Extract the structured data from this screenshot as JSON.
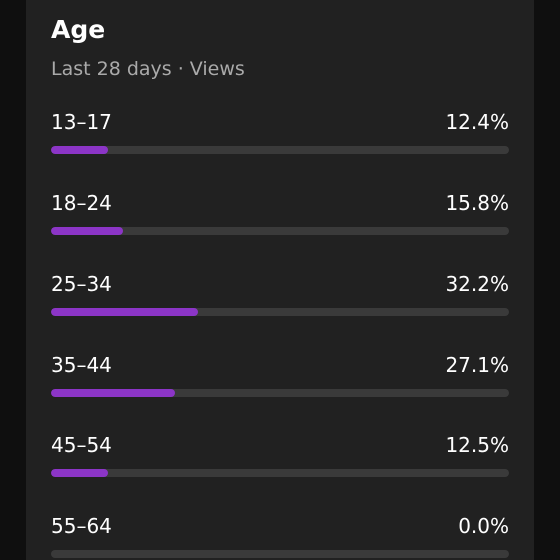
{
  "header": {
    "title": "Age",
    "subtitle": "Last 28 days · Views"
  },
  "accent_color": "#8c35c7",
  "track_color": "#3a3a3a",
  "rows": [
    {
      "label": "13–17",
      "value": "12.4%",
      "percent": 12.4
    },
    {
      "label": "18–24",
      "value": "15.8%",
      "percent": 15.8
    },
    {
      "label": "25–34",
      "value": "32.2%",
      "percent": 32.2
    },
    {
      "label": "35–44",
      "value": "27.1%",
      "percent": 27.1
    },
    {
      "label": "45–54",
      "value": "12.5%",
      "percent": 12.5
    },
    {
      "label": "55–64",
      "value": "0.0%",
      "percent": 0.0
    }
  ]
}
